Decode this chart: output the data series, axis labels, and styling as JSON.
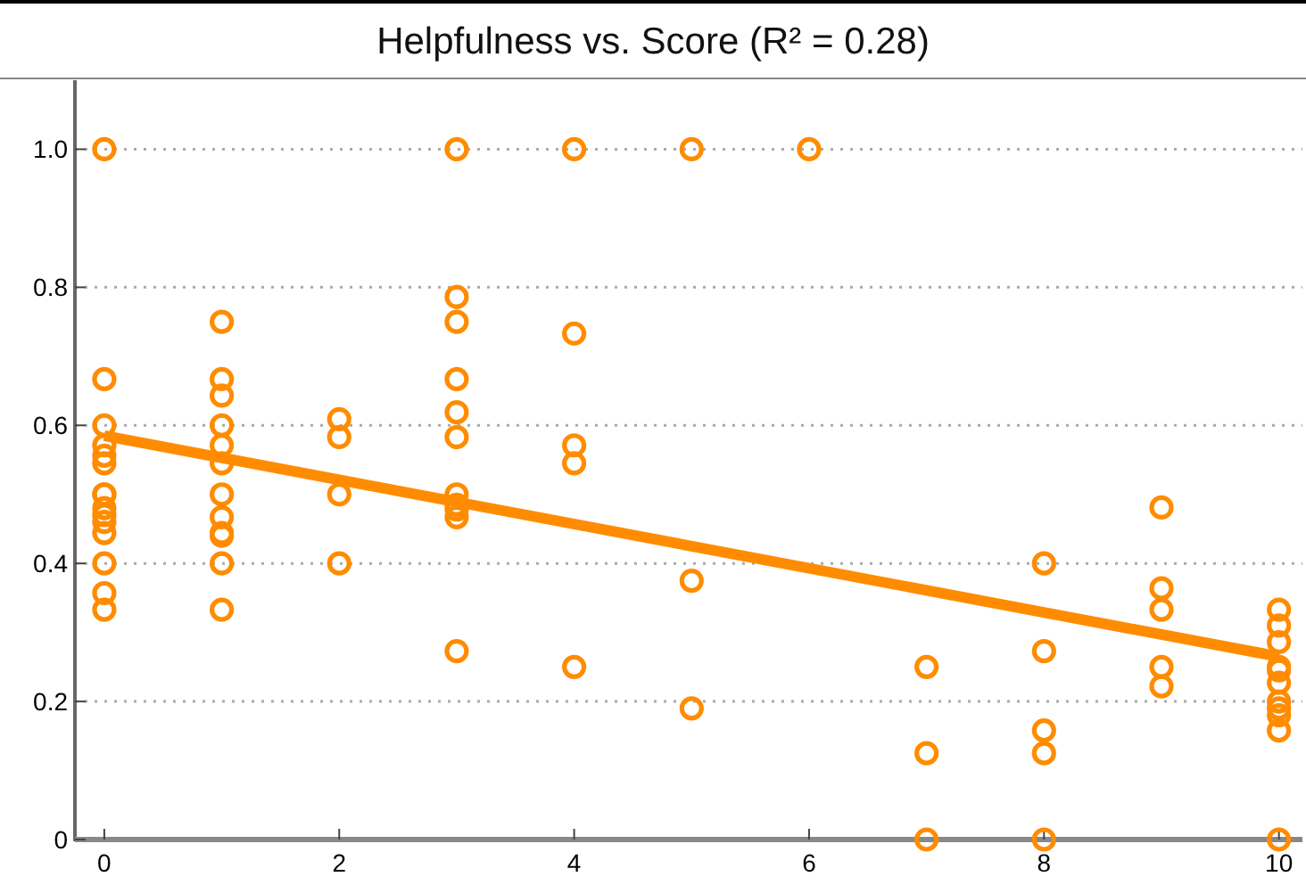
{
  "chart_data": {
    "type": "scatter",
    "title": "Helpfulness vs. Score (R² = 0.28)",
    "xlim": [
      -0.25,
      10.2
    ],
    "ylim": [
      0,
      1.1
    ],
    "xticks": [
      0,
      2,
      4,
      6,
      8,
      10
    ],
    "yticks": [
      {
        "value": 0,
        "label": "0"
      },
      {
        "value": 0.2,
        "label": "0.2"
      },
      {
        "value": 0.4,
        "label": "0.4"
      },
      {
        "value": 0.6,
        "label": "0.6"
      },
      {
        "value": 0.8,
        "label": "0.8"
      },
      {
        "value": 1,
        "label": "1.0"
      }
    ],
    "grid": "y",
    "series": [
      {
        "marker": "circle",
        "color": "#ff8c00",
        "x": [
          0,
          0,
          0,
          0,
          0,
          0,
          0,
          0,
          0,
          0,
          0,
          0,
          0,
          0,
          0,
          1,
          1,
          1,
          1,
          1,
          1,
          1,
          1,
          1,
          1,
          1,
          1,
          2,
          2,
          2,
          2,
          3,
          3,
          3,
          3,
          3,
          3,
          3,
          3,
          3,
          3,
          3,
          4,
          4,
          4,
          4,
          4,
          5,
          5,
          5,
          6,
          7,
          7,
          7,
          8,
          8,
          8,
          8,
          8,
          9,
          9,
          9,
          9,
          9,
          10,
          10,
          10,
          10,
          10,
          10,
          10,
          10,
          10,
          10,
          10
        ],
        "values": [
          1,
          0.667,
          0.6,
          0.571,
          0.556,
          0.545,
          0.5,
          0.5,
          0.48,
          0.47,
          0.46,
          0.444,
          0.4,
          0.357,
          0.333,
          0.75,
          0.667,
          0.643,
          0.6,
          0.571,
          0.545,
          0.5,
          0.467,
          0.444,
          0.44,
          0.4,
          0.333,
          0.609,
          0.583,
          0.5,
          0.4,
          1,
          0.786,
          0.75,
          0.667,
          0.619,
          0.583,
          0.5,
          0.485,
          0.478,
          0.467,
          0.273,
          1,
          0.733,
          0.571,
          0.545,
          0.25,
          1,
          0.375,
          0.19,
          1,
          0.25,
          0.125,
          0,
          0.4,
          0.273,
          0.158,
          0.125,
          0,
          0.481,
          0.364,
          0.333,
          0.25,
          0.222,
          0.333,
          0.31,
          0.286,
          0.25,
          0.245,
          0.227,
          0.2,
          0.19,
          0.18,
          0.158,
          0
        ]
      },
      {
        "type": "line",
        "marker": "none",
        "color": "#ff8c00",
        "x": [
          0,
          10
        ],
        "values": [
          0.585,
          0.265
        ]
      }
    ]
  }
}
